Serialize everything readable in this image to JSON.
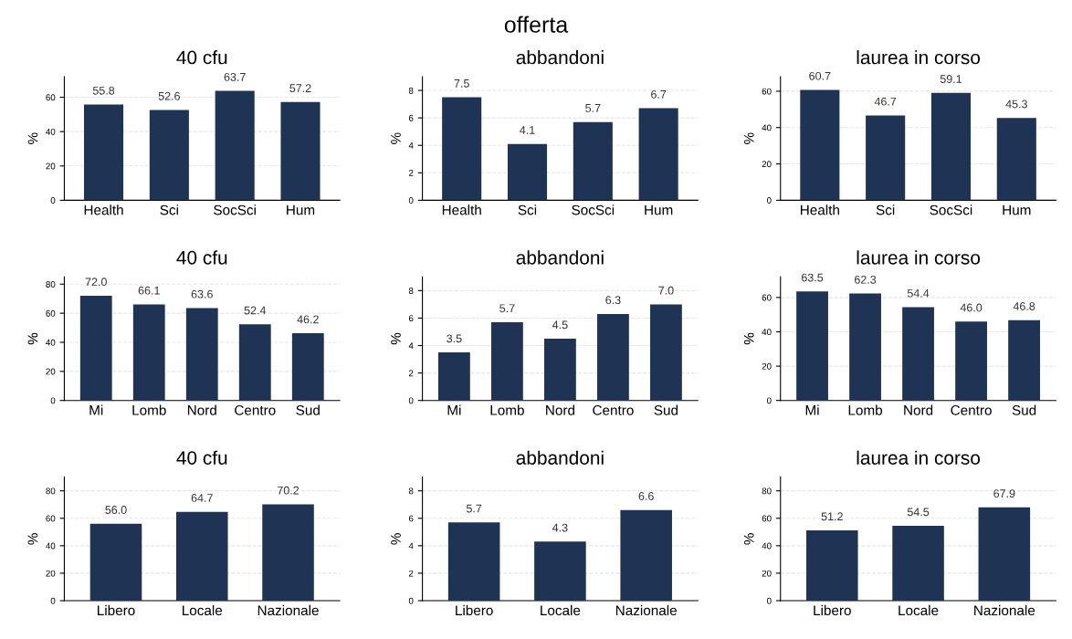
{
  "chart_data": [
    {
      "type": "other",
      "title": "offerta"
    },
    {
      "type": "bar",
      "title": "40 cfu",
      "ylabel": "%",
      "categories": [
        "Health",
        "Sci",
        "SocSci",
        "Hum"
      ],
      "values": [
        55.8,
        52.6,
        63.7,
        57.2
      ],
      "value_labels": [
        "55.8",
        "52.6",
        "63.7",
        "57.2"
      ],
      "color": "#1f3354",
      "ylim": [
        0,
        72
      ],
      "yticks": [
        0,
        20,
        40,
        60
      ],
      "grid": "y"
    },
    {
      "type": "bar",
      "title": "abbandoni",
      "ylabel": "%",
      "categories": [
        "Health",
        "Sci",
        "SocSci",
        "Hum"
      ],
      "values": [
        7.5,
        4.1,
        5.7,
        6.7
      ],
      "value_labels": [
        "7.5",
        "4.1",
        "5.7",
        "6.7"
      ],
      "color": "#1f3354",
      "ylim": [
        0,
        9
      ],
      "yticks": [
        0,
        2,
        4,
        6,
        8
      ],
      "grid": "y"
    },
    {
      "type": "bar",
      "title": "laurea in corso",
      "ylabel": "%",
      "categories": [
        "Health",
        "Sci",
        "SocSci",
        "Hum"
      ],
      "values": [
        60.7,
        46.7,
        59.1,
        45.3
      ],
      "value_labels": [
        "60.7",
        "46.7",
        "59.1",
        "45.3"
      ],
      "color": "#1f3354",
      "ylim": [
        0,
        68
      ],
      "yticks": [
        0,
        20,
        40,
        60
      ],
      "grid": "y"
    },
    {
      "type": "bar",
      "title": "40 cfu",
      "ylabel": "%",
      "categories": [
        "Mi",
        "Lomb",
        "Nord",
        "Centro",
        "Sud"
      ],
      "values": [
        72.0,
        66.1,
        63.6,
        52.4,
        46.2
      ],
      "value_labels": [
        "72.0",
        "66.1",
        "63.6",
        "52.4",
        "46.2"
      ],
      "color": "#1f3354",
      "ylim": [
        0,
        85
      ],
      "yticks": [
        0,
        20,
        40,
        60,
        80
      ],
      "grid": "y"
    },
    {
      "type": "bar",
      "title": "abbandoni",
      "ylabel": "%",
      "categories": [
        "Mi",
        "Lomb",
        "Nord",
        "Centro",
        "Sud"
      ],
      "values": [
        3.5,
        5.7,
        4.5,
        6.3,
        7.0
      ],
      "value_labels": [
        "3.5",
        "5.7",
        "4.5",
        "6.3",
        "7.0"
      ],
      "color": "#1f3354",
      "ylim": [
        0,
        9
      ],
      "yticks": [
        0,
        2,
        4,
        6,
        8
      ],
      "grid": "y"
    },
    {
      "type": "bar",
      "title": "laurea in corso",
      "ylabel": "%",
      "categories": [
        "Mi",
        "Lomb",
        "Nord",
        "Centro",
        "Sud"
      ],
      "values": [
        63.5,
        62.3,
        54.4,
        46.0,
        46.8
      ],
      "value_labels": [
        "63.5",
        "62.3",
        "54.4",
        "46.0",
        "46.8"
      ],
      "color": "#1f3354",
      "ylim": [
        0,
        72
      ],
      "yticks": [
        0,
        20,
        40,
        60
      ],
      "grid": "y"
    },
    {
      "type": "bar",
      "title": "40 cfu",
      "ylabel": "%",
      "categories": [
        "Libero",
        "Locale",
        "Nazionale"
      ],
      "values": [
        56.0,
        64.7,
        70.2
      ],
      "value_labels": [
        "56.0",
        "64.7",
        "70.2"
      ],
      "color": "#1f3354",
      "ylim": [
        0,
        90
      ],
      "yticks": [
        0,
        20,
        40,
        60,
        80
      ],
      "grid": "y"
    },
    {
      "type": "bar",
      "title": "abbandoni",
      "ylabel": "%",
      "categories": [
        "Libero",
        "Locale",
        "Nazionale"
      ],
      "values": [
        5.7,
        4.3,
        6.6
      ],
      "value_labels": [
        "5.7",
        "4.3",
        "6.6"
      ],
      "color": "#1f3354",
      "ylim": [
        0,
        9
      ],
      "yticks": [
        0,
        2,
        4,
        6,
        8
      ],
      "grid": "y"
    },
    {
      "type": "bar",
      "title": "laurea in corso",
      "ylabel": "%",
      "categories": [
        "Libero",
        "Locale",
        "Nazionale"
      ],
      "values": [
        51.2,
        54.5,
        67.9
      ],
      "value_labels": [
        "51.2",
        "54.5",
        "67.9"
      ],
      "color": "#1f3354",
      "ylim": [
        0,
        90
      ],
      "yticks": [
        0,
        20,
        40,
        60,
        80
      ],
      "grid": "y"
    }
  ]
}
